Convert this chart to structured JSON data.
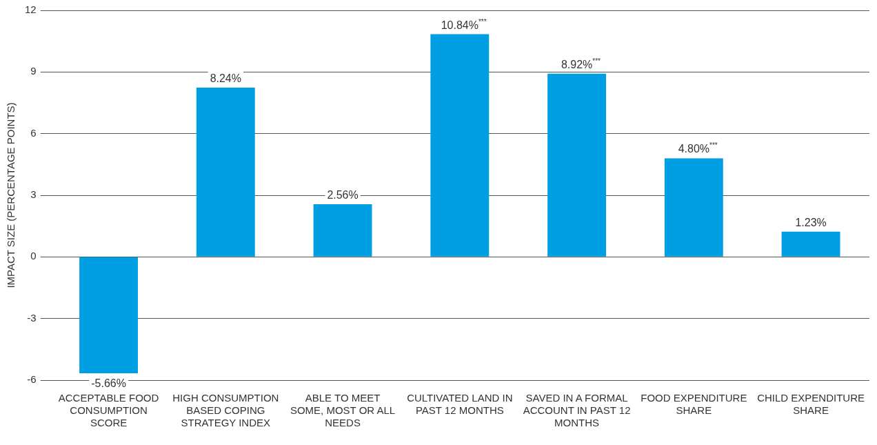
{
  "chart_data": {
    "type": "bar",
    "ylabel": "IMPACT SIZE (PERCENTAGE POINTS)",
    "categories": [
      "ACCEPTABLE FOOD CONSUMPTION SCORE",
      "HIGH CONSUMPTION BASED COPING STRATEGY INDEX",
      "ABLE TO MEET SOME, MOST OR ALL NEEDS",
      "CULTIVATED LAND IN PAST 12 MONTHS",
      "SAVED IN A FORMAL ACCOUNT IN PAST 12 MONTHS",
      "FOOD EXPENDITURE SHARE",
      "CHILD EXPENDITURE SHARE"
    ],
    "values": [
      -5.66,
      8.24,
      2.56,
      10.84,
      8.92,
      4.8,
      1.23
    ],
    "value_labels": [
      "-5.66%",
      "8.24%",
      "2.56%",
      "10.84%$^{***}$",
      "8.92%$^{***}$",
      "4.80%$^{***}$",
      "1.23%"
    ],
    "color": "#009fe3",
    "ylim": [
      -6,
      12
    ],
    "yticks": [
      -6,
      -3,
      0,
      3,
      6,
      9,
      12
    ],
    "grid": "y",
    "legend": false
  }
}
